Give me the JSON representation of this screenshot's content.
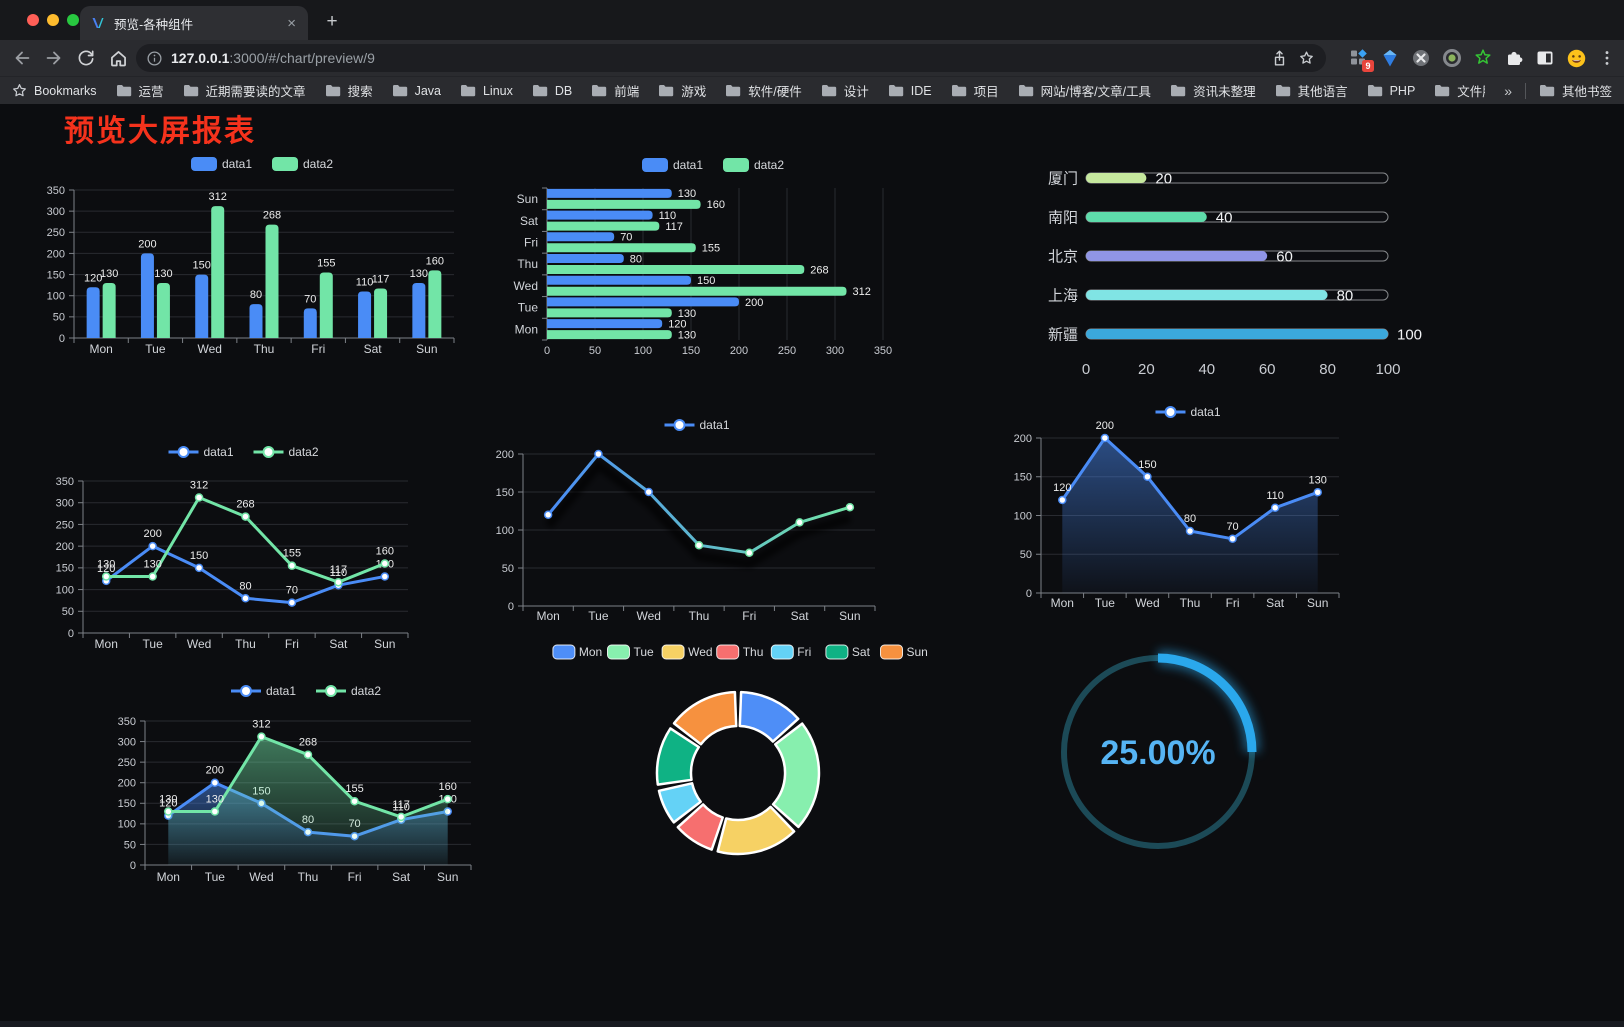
{
  "browser": {
    "tab": {
      "title": "预览-各种组件",
      "close_glyph": "×",
      "new_tab_glyph": "+"
    },
    "address": {
      "host": "127.0.0.1",
      "rest": ":3000/#/chart/preview/9"
    },
    "extensions_badge": "9",
    "bookmarks": {
      "bar_label": "Bookmarks",
      "items": [
        "运营",
        "近期需要读的文章",
        "搜索",
        "Java",
        "Linux",
        "DB",
        "前端",
        "游戏",
        "软件/硬件",
        "设计",
        "IDE",
        "项目",
        "网站/博客/文章/工具",
        "资讯未整理",
        "其他语言",
        "PHP",
        "文件服务器"
      ],
      "overflow_glyph": "»",
      "other_label": "其他书签"
    }
  },
  "page": {
    "title": "预览大屏报表",
    "title_color": "#f5321c",
    "background": "#0c0d10"
  },
  "chart_data": [
    {
      "id": "bar-grouped",
      "type": "bar",
      "categories": [
        "Mon",
        "Tue",
        "Wed",
        "Thu",
        "Fri",
        "Sat",
        "Sun"
      ],
      "series": [
        {
          "name": "data1",
          "color": "#4a8cf6",
          "values": [
            120,
            200,
            150,
            80,
            70,
            110,
            130
          ]
        },
        {
          "name": "data2",
          "color": "#72e5a7",
          "values": [
            130,
            130,
            312,
            268,
            155,
            117,
            160
          ]
        }
      ],
      "ylim": [
        0,
        350
      ],
      "ytick": 50,
      "legend_position": "top",
      "grid": true
    },
    {
      "id": "bar-horizontal",
      "type": "hbar",
      "categories": [
        "Sun",
        "Sat",
        "Fri",
        "Thu",
        "Wed",
        "Tue",
        "Mon"
      ],
      "series": [
        {
          "name": "data1",
          "color": "#4a8cf6",
          "values": [
            130,
            110,
            70,
            80,
            150,
            200,
            120
          ]
        },
        {
          "name": "data2",
          "color": "#72e5a7",
          "values": [
            160,
            117,
            155,
            268,
            312,
            130,
            130
          ]
        }
      ],
      "xlim": [
        0,
        350
      ],
      "xtick": 50,
      "legend_position": "top",
      "grid": true
    },
    {
      "id": "progress",
      "type": "progress",
      "max": 100,
      "axis_ticks": [
        0,
        20,
        40,
        60,
        80,
        100
      ],
      "rows": [
        {
          "label": "厦门",
          "value": 20,
          "color": "#c6e89e"
        },
        {
          "label": "南阳",
          "value": 40,
          "color": "#5edcab"
        },
        {
          "label": "北京",
          "value": 60,
          "color": "#9095e6"
        },
        {
          "label": "上海",
          "value": 80,
          "color": "#80e4e4"
        },
        {
          "label": "新疆",
          "value": 100,
          "color": "#3ba8dc"
        }
      ]
    },
    {
      "id": "line-dual",
      "type": "line",
      "categories": [
        "Mon",
        "Tue",
        "Wed",
        "Thu",
        "Fri",
        "Sat",
        "Sun"
      ],
      "series": [
        {
          "name": "data1",
          "color": "#4a8cf6",
          "values": [
            120,
            200,
            150,
            80,
            70,
            110,
            130
          ]
        },
        {
          "name": "data2",
          "color": "#72e5a7",
          "values": [
            130,
            130,
            312,
            268,
            155,
            117,
            160
          ]
        }
      ],
      "ylim": [
        0,
        350
      ],
      "ytick": 50,
      "show_labels": true,
      "legend_position": "top",
      "grid": true
    },
    {
      "id": "line-gradient",
      "type": "line",
      "categories": [
        "Mon",
        "Tue",
        "Wed",
        "Thu",
        "Fri",
        "Sat",
        "Sun"
      ],
      "series": [
        {
          "name": "data1",
          "gradient": [
            "#4a8cf6",
            "#72e5a7"
          ],
          "values": [
            120,
            200,
            150,
            80,
            70,
            110,
            130
          ]
        }
      ],
      "ylim": [
        0,
        200
      ],
      "ytick": 50,
      "show_labels": false,
      "shadow": true,
      "legend_position": "top",
      "grid": true
    },
    {
      "id": "line-area",
      "type": "line",
      "categories": [
        "Mon",
        "Tue",
        "Wed",
        "Thu",
        "Fri",
        "Sat",
        "Sun"
      ],
      "series": [
        {
          "name": "data1",
          "color": "#4a8cf6",
          "area": true,
          "values": [
            120,
            200,
            150,
            80,
            70,
            110,
            130
          ]
        }
      ],
      "ylim": [
        0,
        200
      ],
      "ytick": 50,
      "show_labels": true,
      "legend_position": "top",
      "grid": true
    },
    {
      "id": "line-dual-area",
      "type": "line",
      "categories": [
        "Mon",
        "Tue",
        "Wed",
        "Thu",
        "Fri",
        "Sat",
        "Sun"
      ],
      "series": [
        {
          "name": "data1",
          "color": "#4a8cf6",
          "area": true,
          "values": [
            120,
            200,
            150,
            80,
            70,
            110,
            130
          ]
        },
        {
          "name": "data2",
          "color": "#72e5a7",
          "area": true,
          "values": [
            130,
            130,
            312,
            268,
            155,
            117,
            160
          ]
        }
      ],
      "ylim": [
        0,
        350
      ],
      "ytick": 50,
      "show_labels": true,
      "legend_position": "top",
      "grid": true
    },
    {
      "id": "donut",
      "type": "pie",
      "inner_radius_ratio": 0.58,
      "legend_position": "top",
      "items": [
        {
          "label": "Mon",
          "value": 120,
          "color": "#4e8ef7"
        },
        {
          "label": "Tue",
          "value": 200,
          "color": "#87efae"
        },
        {
          "label": "Wed",
          "value": 150,
          "color": "#f6d164"
        },
        {
          "label": "Thu",
          "value": 80,
          "color": "#f66f6f"
        },
        {
          "label": "Fri",
          "value": 70,
          "color": "#64d2f6"
        },
        {
          "label": "Sat",
          "value": 110,
          "color": "#0fb284"
        },
        {
          "label": "Sun",
          "value": 130,
          "color": "#f6913f"
        }
      ]
    },
    {
      "id": "gauge",
      "type": "gauge",
      "value": 25,
      "display": "25.00%",
      "progress_color": "#2aa8ec",
      "track_color": "#1c4a57",
      "text_color": "#56b4f4"
    }
  ]
}
